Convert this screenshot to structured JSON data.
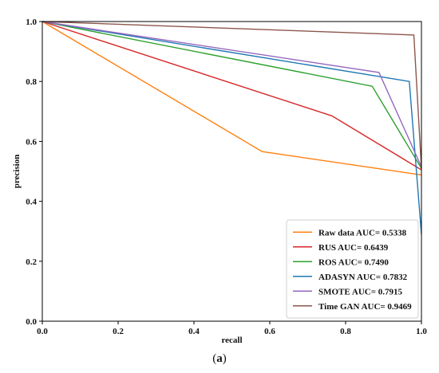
{
  "chart_data": {
    "type": "line",
    "xlabel": "recall",
    "ylabel": "precision",
    "xlim": [
      0.0,
      1.0
    ],
    "ylim": [
      0.0,
      1.0
    ],
    "xticks": [
      "0.0",
      "0.2",
      "0.4",
      "0.6",
      "0.8",
      "1.0"
    ],
    "yticks": [
      "0.0",
      "0.2",
      "0.4",
      "0.6",
      "0.8",
      "1.0"
    ],
    "grid": false,
    "legend_position": "bottom-right",
    "series": [
      {
        "name": "Raw data AUC= 0.5338",
        "color": "#ff7f0e",
        "x": [
          0.0,
          0.58,
          1.0
        ],
        "y": [
          1.0,
          0.566,
          0.488
        ]
      },
      {
        "name": "RUS AUC= 0.6439",
        "color": "#d62728",
        "x": [
          0.0,
          0.764,
          1.0
        ],
        "y": [
          1.0,
          0.685,
          0.505
        ]
      },
      {
        "name": "ROS AUC= 0.7490",
        "color": "#2ca02c",
        "x": [
          0.0,
          0.87,
          1.0
        ],
        "y": [
          1.0,
          0.784,
          0.51
        ]
      },
      {
        "name": "ADASYN AUC= 0.7832",
        "color": "#1f77b4",
        "x": [
          0.0,
          0.968,
          1.0
        ],
        "y": [
          1.0,
          0.8,
          0.29
        ]
      },
      {
        "name": "SMOTE AUC= 0.7915",
        "color": "#9467bd",
        "x": [
          0.0,
          0.888,
          1.0
        ],
        "y": [
          1.0,
          0.83,
          0.515
        ]
      },
      {
        "name": "Time GAN AUC= 0.9469",
        "color": "#8c564b",
        "x": [
          0.0,
          0.98,
          1.0
        ],
        "y": [
          1.0,
          0.955,
          0.51
        ]
      }
    ]
  },
  "caption": {
    "open": "(",
    "letter": "a",
    "close": ")"
  }
}
